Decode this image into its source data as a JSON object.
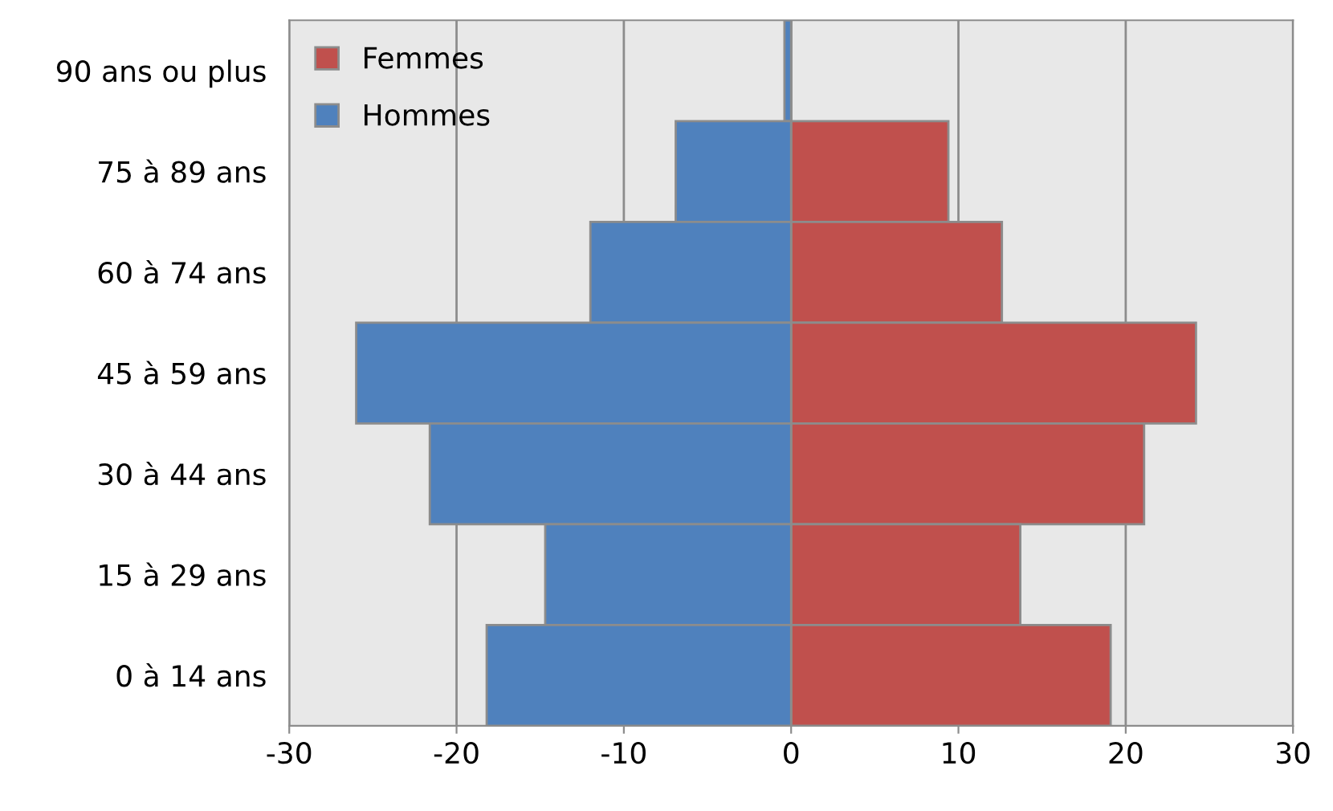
{
  "chart_data": {
    "type": "bar",
    "orientation": "horizontal",
    "categories": [
      "90 ans ou plus",
      "75 à 89 ans",
      "60 à 74 ans",
      "45 à 59 ans",
      "30 à 44 ans",
      "15 à 29 ans",
      "0 à 14 ans"
    ],
    "series": [
      {
        "name": "Femmes",
        "color": "#c0504d",
        "values": [
          0,
          9.4,
          12.6,
          24.2,
          21.1,
          13.7,
          19.1
        ]
      },
      {
        "name": "Hommes",
        "color": "#4f81bd",
        "values": [
          -0.4,
          -6.9,
          -12.0,
          -26.0,
          -21.6,
          -14.7,
          -18.2
        ]
      }
    ],
    "xlim": [
      -30,
      30
    ],
    "xticks": [
      -30,
      -20,
      -10,
      0,
      10,
      20,
      30
    ],
    "stacked": true,
    "grid": "x",
    "legend": "top left"
  }
}
